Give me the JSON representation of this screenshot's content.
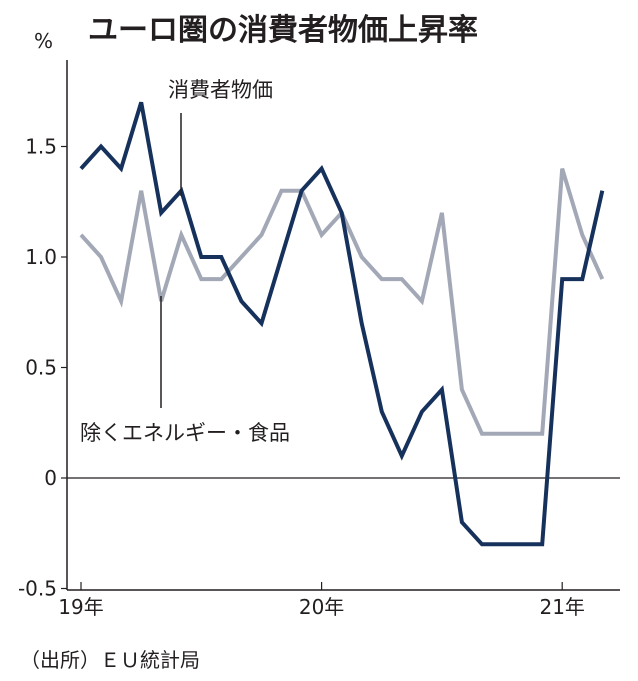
{
  "chart_data": {
    "type": "line",
    "title": "ユーロ圏の消費者物価上昇率",
    "unit_label": "%",
    "source": "（出所）ＥＵ統計局",
    "ylim": [
      -0.5,
      1.9
    ],
    "yticks": [
      {
        "value": 1.5,
        "label": "1.5"
      },
      {
        "value": 1.0,
        "label": "1.0"
      },
      {
        "value": 0.5,
        "label": "0.5"
      },
      {
        "value": 0,
        "label": "0"
      },
      {
        "value": -0.5,
        "label": "-0.5"
      }
    ],
    "x": [
      "2019-01",
      "2019-02",
      "2019-03",
      "2019-04",
      "2019-05",
      "2019-06",
      "2019-07",
      "2019-08",
      "2019-09",
      "2019-10",
      "2019-11",
      "2019-12",
      "2020-01",
      "2020-02",
      "2020-03",
      "2020-04",
      "2020-05",
      "2020-06",
      "2020-07",
      "2020-08",
      "2020-09",
      "2020-10",
      "2020-11",
      "2020-12",
      "2021-01",
      "2021-02",
      "2021-03"
    ],
    "xticks": [
      {
        "x": "2019-01",
        "label": "19年"
      },
      {
        "x": "2020-01",
        "label": "20年"
      },
      {
        "x": "2021-01",
        "label": "21年"
      }
    ],
    "zero_line": true,
    "grid": false,
    "series": [
      {
        "name": "消費者物価",
        "color": "#16325c",
        "values": [
          1.4,
          1.5,
          1.4,
          1.7,
          1.2,
          1.3,
          1.0,
          1.0,
          0.8,
          0.7,
          1.0,
          1.3,
          1.4,
          1.2,
          0.7,
          0.3,
          0.1,
          0.3,
          0.4,
          -0.2,
          -0.3,
          -0.3,
          -0.3,
          -0.3,
          0.9,
          0.9,
          1.3
        ]
      },
      {
        "name": "除くエネルギー・食品",
        "color": "#a3a8b7",
        "values": [
          1.1,
          1.0,
          0.8,
          1.3,
          0.8,
          1.1,
          0.9,
          0.9,
          1.0,
          1.1,
          1.3,
          1.3,
          1.1,
          1.2,
          1.0,
          0.9,
          0.9,
          0.8,
          1.2,
          0.4,
          0.2,
          0.2,
          0.2,
          0.2,
          1.4,
          1.1,
          0.9
        ]
      }
    ]
  }
}
